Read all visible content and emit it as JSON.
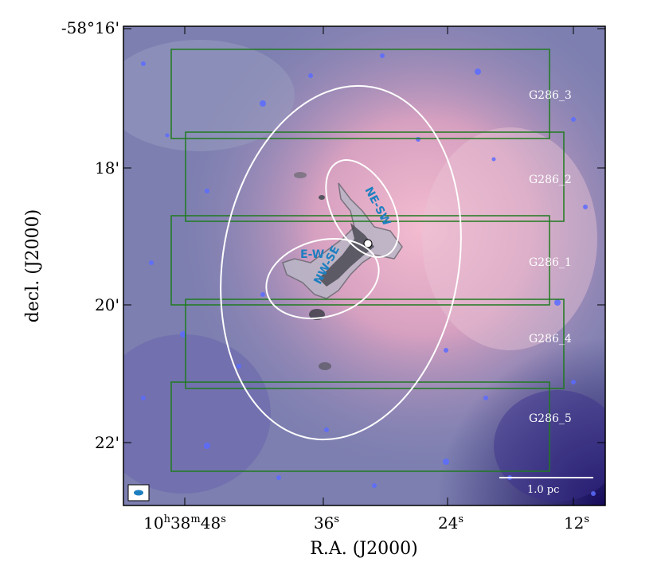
{
  "figure": {
    "xlabel": "R.A. (J2000)",
    "ylabel": "decl. (J2000)",
    "x_ticks": [
      {
        "main": "10",
        "sup1": "h",
        "mid": "38",
        "sup2": "m",
        "end": "48",
        "sup3": "s"
      },
      {
        "main": "36",
        "sup3": "s"
      },
      {
        "main": "24",
        "sup3": "s"
      },
      {
        "main": "12",
        "sup3": "s"
      }
    ],
    "y_ticks": [
      "-58°16'",
      "18'",
      "20'",
      "22'"
    ],
    "fields": [
      "G286_3",
      "G286_2",
      "G286_1",
      "G286_4",
      "G286_5"
    ],
    "regions": [
      "NE-SW",
      "E-W",
      "NW-SE"
    ],
    "scale_bar": "1.0 pc",
    "colors": {
      "field_box": "#1f7a1f",
      "ellipse": "#ffffff",
      "region_text": "#1e7fc0",
      "beam": "#1e7fc0"
    }
  }
}
